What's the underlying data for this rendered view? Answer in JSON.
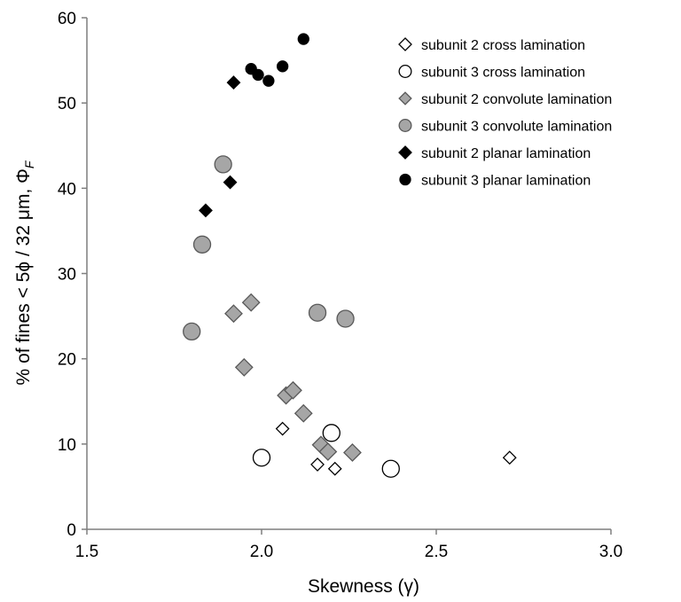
{
  "chart_data": {
    "type": "scatter",
    "xlabel": "Skewness (γ)",
    "ylabel": "% of fines < 5ϕ / 32 μm, Φ",
    "ylabel_subscript": "F",
    "xlim": [
      1.5,
      3.0
    ],
    "ylim": [
      0,
      60
    ],
    "xticks": [
      "1.5",
      "2.0",
      "2.5",
      "3.0"
    ],
    "yticks": [
      "0",
      "10",
      "20",
      "30",
      "40",
      "50",
      "60"
    ],
    "xtick_values": [
      1.5,
      2.0,
      2.5,
      3.0
    ],
    "ytick_values": [
      0,
      10,
      20,
      30,
      40,
      50,
      60
    ],
    "grid": false,
    "legend_position": "top-right",
    "series": [
      {
        "name": "subunit 2 cross lamination",
        "marker": "diamond",
        "fill": "#ffffff",
        "stroke": "#000000",
        "size": "small",
        "points": [
          [
            2.06,
            11.8
          ],
          [
            2.16,
            7.6
          ],
          [
            2.21,
            7.1
          ],
          [
            2.71,
            8.4
          ]
        ]
      },
      {
        "name": "subunit 3 cross lamination",
        "marker": "circle",
        "fill": "#ffffff",
        "stroke": "#000000",
        "size": "large",
        "points": [
          [
            2.0,
            8.4
          ],
          [
            2.2,
            11.3
          ],
          [
            2.37,
            7.1
          ]
        ]
      },
      {
        "name": "subunit 2 convolute lamination",
        "marker": "diamond",
        "fill": "#a6a6a6",
        "stroke": "#595959",
        "size": "large",
        "points": [
          [
            1.92,
            25.3
          ],
          [
            1.97,
            26.6
          ],
          [
            1.95,
            19.0
          ],
          [
            2.07,
            15.7
          ],
          [
            2.09,
            16.3
          ],
          [
            2.12,
            13.6
          ],
          [
            2.17,
            9.9
          ],
          [
            2.19,
            9.1
          ],
          [
            2.26,
            9.0
          ]
        ]
      },
      {
        "name": "subunit 3 convolute lamination",
        "marker": "circle",
        "fill": "#a6a6a6",
        "stroke": "#595959",
        "size": "large",
        "points": [
          [
            1.8,
            23.2
          ],
          [
            1.83,
            33.4
          ],
          [
            1.89,
            42.8
          ],
          [
            2.16,
            25.4
          ],
          [
            2.24,
            24.7
          ]
        ]
      },
      {
        "name": "subunit 2 planar lamination",
        "marker": "diamond",
        "fill": "#000000",
        "stroke": "#000000",
        "size": "small",
        "points": [
          [
            1.84,
            37.4
          ],
          [
            1.91,
            40.7
          ],
          [
            1.92,
            52.4
          ]
        ]
      },
      {
        "name": "subunit 3 planar lamination",
        "marker": "circle",
        "fill": "#000000",
        "stroke": "#000000",
        "size": "small",
        "points": [
          [
            1.97,
            54.0
          ],
          [
            1.99,
            53.3
          ],
          [
            2.02,
            52.6
          ],
          [
            2.06,
            54.3
          ],
          [
            2.12,
            57.5
          ]
        ]
      }
    ]
  }
}
